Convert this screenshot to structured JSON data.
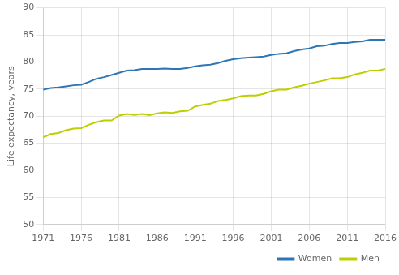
{
  "chart_data": {
    "type": "line",
    "ylabel": "Life expectancy, years",
    "x": [
      1971,
      1972,
      1973,
      1974,
      1975,
      1976,
      1977,
      1978,
      1979,
      1980,
      1981,
      1982,
      1983,
      1984,
      1985,
      1986,
      1987,
      1988,
      1989,
      1990,
      1991,
      1992,
      1993,
      1994,
      1995,
      1996,
      1997,
      1998,
      1999,
      2000,
      2001,
      2002,
      2003,
      2004,
      2005,
      2006,
      2007,
      2008,
      2009,
      2010,
      2011,
      2012,
      2013,
      2014,
      2015,
      2016
    ],
    "series": [
      {
        "name": "Women",
        "color": "#2e75b6",
        "values": [
          74.9,
          75.2,
          75.3,
          75.5,
          75.7,
          75.8,
          76.3,
          76.9,
          77.2,
          77.6,
          78.0,
          78.4,
          78.5,
          78.7,
          78.7,
          78.7,
          78.8,
          78.7,
          78.7,
          78.9,
          79.2,
          79.4,
          79.5,
          79.8,
          80.2,
          80.5,
          80.7,
          80.8,
          80.9,
          81.0,
          81.3,
          81.5,
          81.6,
          82.0,
          82.3,
          82.5,
          82.9,
          83.0,
          83.3,
          83.5,
          83.5,
          83.7,
          83.8,
          84.1,
          84.1,
          84.1
        ]
      },
      {
        "name": "Men",
        "color": "#bfce00",
        "values": [
          66.1,
          66.7,
          66.9,
          67.4,
          67.7,
          67.8,
          68.4,
          68.9,
          69.2,
          69.2,
          70.1,
          70.4,
          70.2,
          70.4,
          70.2,
          70.5,
          70.7,
          70.6,
          70.9,
          71.0,
          71.8,
          72.1,
          72.3,
          72.8,
          73.0,
          73.3,
          73.7,
          73.8,
          73.8,
          74.1,
          74.6,
          74.9,
          74.9,
          75.3,
          75.6,
          76.0,
          76.3,
          76.6,
          77.0,
          77.0,
          77.2,
          77.7,
          78.0,
          78.4,
          78.4,
          78.7
        ]
      }
    ],
    "xlim": [
      1971,
      2016
    ],
    "xticks": [
      1971,
      1976,
      1981,
      1986,
      1991,
      1996,
      2001,
      2006,
      2011,
      2016
    ],
    "ylim": [
      50,
      90
    ],
    "yticks": [
      50,
      55,
      60,
      65,
      70,
      75,
      80,
      85,
      90
    ],
    "grid": true,
    "legend": "lower right"
  }
}
